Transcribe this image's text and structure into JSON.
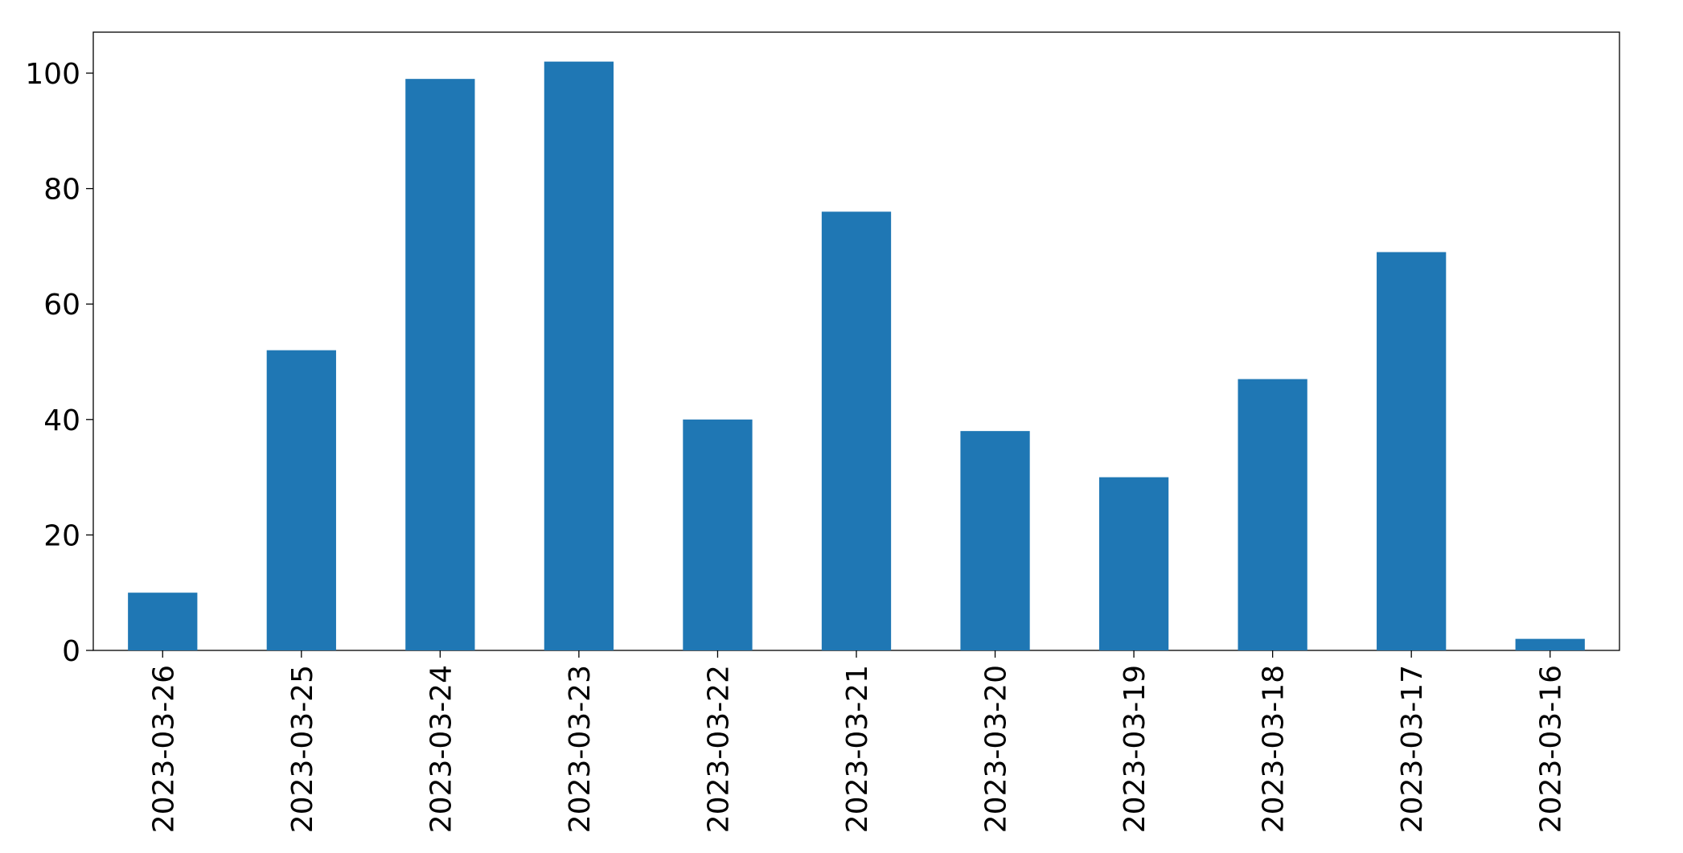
{
  "chart_data": {
    "type": "bar",
    "categories": [
      "2023-03-26",
      "2023-03-25",
      "2023-03-24",
      "2023-03-23",
      "2023-03-22",
      "2023-03-21",
      "2023-03-20",
      "2023-03-19",
      "2023-03-18",
      "2023-03-17",
      "2023-03-16"
    ],
    "values": [
      10,
      52,
      99,
      102,
      40,
      76,
      38,
      30,
      47,
      69,
      2
    ],
    "color": "#1f77b4",
    "ylim": [
      0,
      107.1
    ],
    "yticks": [
      0,
      20,
      40,
      60,
      80,
      100
    ],
    "grid": false
  }
}
